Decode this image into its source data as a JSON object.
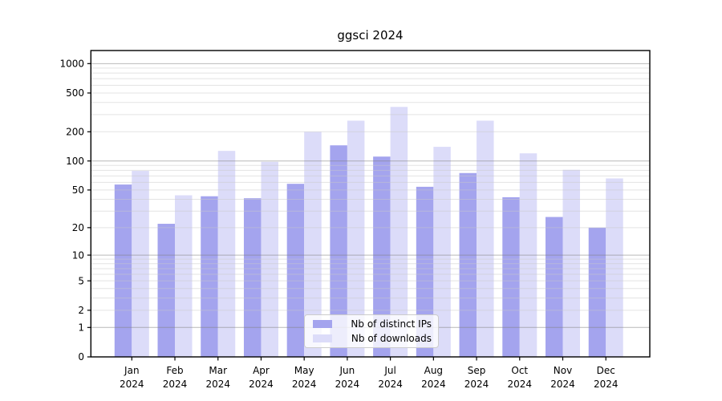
{
  "title": "ggsci 2024",
  "colors": {
    "distinct_ips": "#a4a4ee",
    "downloads": "#dcdcf9",
    "grid_major": "#808080",
    "grid_minor": "#c8c8c8",
    "axis": "#000000",
    "legend_border": "#cccccc"
  },
  "legend": {
    "items": [
      {
        "label": "Nb of distinct IPs",
        "color_key": "distinct_ips"
      },
      {
        "label": "Nb of downloads",
        "color_key": "downloads"
      }
    ]
  },
  "chart_data": {
    "type": "bar",
    "title": "ggsci 2024",
    "y_scale": "log1p",
    "grid": true,
    "legend_position": "lower center",
    "categories": [
      "Jan",
      "Feb",
      "Mar",
      "Apr",
      "May",
      "Jun",
      "Jul",
      "Aug",
      "Sep",
      "Oct",
      "Nov",
      "Dec"
    ],
    "year_label": "2024",
    "series": [
      {
        "name": "Nb of distinct IPs",
        "values": [
          57,
          22,
          43,
          41,
          58,
          145,
          111,
          54,
          75,
          42,
          26,
          20
        ]
      },
      {
        "name": "Nb of downloads",
        "values": [
          79,
          44,
          127,
          98,
          200,
          260,
          360,
          140,
          260,
          120,
          81,
          66
        ]
      }
    ],
    "y_ticks": [
      0,
      1,
      2,
      5,
      10,
      20,
      50,
      100,
      200,
      500,
      1000
    ],
    "ylim": [
      0,
      1450
    ],
    "xlabel": "",
    "ylabel": ""
  }
}
